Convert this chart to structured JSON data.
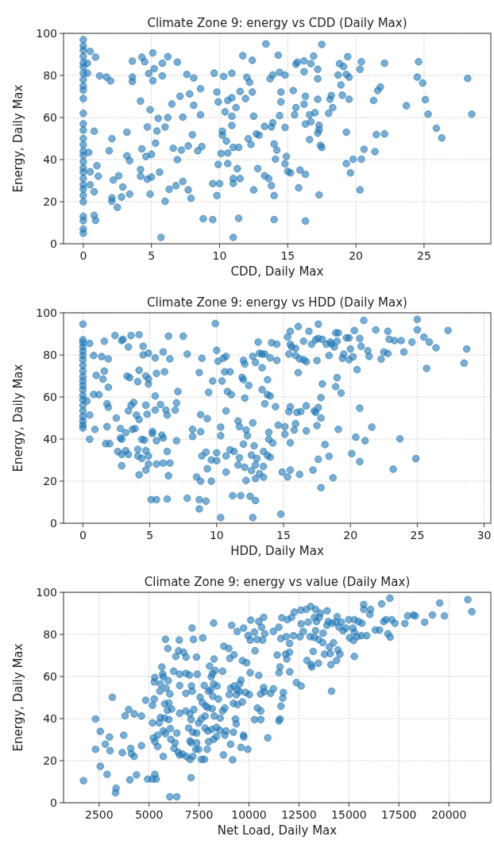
{
  "chart_data": [
    {
      "type": "scatter",
      "title": "Climate Zone 9: energy vs CDD (Daily Max)",
      "xlabel": "CDD, Daily Max",
      "ylabel": "Energy, Daily Max",
      "color": "#1f77b4",
      "marker": "circle",
      "grid": true,
      "xlim": [
        -1.45,
        29.9
      ],
      "ylim": [
        0,
        100
      ],
      "xticks": [
        0,
        5,
        10,
        15,
        20,
        25
      ],
      "yticks": [
        0,
        20,
        40,
        60,
        80,
        100
      ],
      "x": [
        0,
        0,
        0,
        0,
        0,
        0,
        0,
        0,
        0,
        0,
        0,
        0,
        0,
        0,
        0,
        0,
        0,
        0,
        0,
        0,
        0,
        0,
        0,
        0,
        0,
        0,
        0,
        0,
        0,
        0,
        0.5,
        0.9,
        0.3,
        0.3,
        1.2,
        1.7,
        2.0,
        3.6,
        3.6,
        3.6,
        4.3,
        4.5,
        5.1,
        4.8,
        5.2,
        5.1,
        5.8,
        5.8,
        6.2,
        6.9,
        7.6,
        8.1,
        8.6,
        7.8,
        7.1,
        6.5,
        4.2,
        4.9,
        5.5,
        6.2,
        7.3,
        8.1,
        8.6,
        4.7,
        5.4,
        6.0,
        5.3,
        6.6,
        7.2,
        7.7,
        8.0,
        8.7,
        8.4,
        4.3,
        4.6,
        5.0,
        1.9,
        3.2,
        3.4,
        2.1,
        0.8,
        3.2,
        0.4,
        1.0,
        0.5,
        1.1,
        2.2,
        2.6,
        4.2,
        4.2,
        4.7,
        5.6,
        5.0,
        6.9,
        6.3,
        6.8,
        7.3,
        7.7,
        7.9,
        0.5,
        0.8,
        2.1,
        2.1,
        2.5,
        2.9,
        3.4,
        2.8,
        4.9,
        6.0,
        0.8,
        0.9,
        8.8,
        9.5,
        9.8,
        9.5,
        10.0,
        9.9,
        10.1,
        10.6,
        10.6,
        11.0,
        11.4,
        11.3,
        11.5,
        11.0,
        11.0,
        12.5,
        11.4,
        11.0,
        5.7,
        9.6,
        10.3,
        10.9,
        9.8,
        9.9,
        10.6,
        10.9,
        10.4,
        10.9,
        11.2,
        10.9,
        10.2,
        10.2,
        10.5,
        12.1,
        12.3,
        11.7,
        12.4,
        11.5,
        11.9,
        12.4,
        12.0,
        12.2,
        12.5,
        12.7,
        12.9,
        12.8,
        13.3,
        13.6,
        13.8,
        14.0,
        14.0,
        13.4,
        14.3,
        13.7,
        13.9,
        14.4,
        14.8,
        14.5,
        14.5,
        14.4,
        13.9,
        13.8,
        13.3,
        14.0,
        14.2,
        14.8,
        14.1,
        14.9,
        14.8,
        15.0,
        15.2,
        15.8,
        16.3,
        15.9,
        16.3,
        17.3,
        15.4,
        15.6,
        15.5,
        15.6,
        15.7,
        16.2,
        16.7,
        16.9,
        17.5,
        17.2,
        16.2,
        17.2,
        16.3,
        16.2,
        16.6,
        17.0,
        17.2,
        16.3,
        16.7,
        17.3,
        17.3,
        17.2,
        16.6,
        17.4,
        17.5,
        18.0,
        18.3,
        18.1,
        18.2,
        18.7,
        18.9,
        19.0,
        19.5,
        18.8,
        19.1,
        19.4,
        19.3,
        19.5,
        19.3,
        19.3,
        19.8,
        19.6,
        20.3,
        20.4,
        20.6,
        20.3,
        20.4,
        21.4,
        21.5,
        22.1,
        21.3,
        21.6,
        21.8,
        22.1,
        23.7,
        24.6,
        24.5,
        24.9,
        25.1,
        25.3,
        25.9,
        26.3,
        28.2,
        28.5
      ],
      "values": [
        97,
        94,
        92,
        89,
        86,
        84,
        81,
        78,
        75,
        73,
        69,
        62,
        57,
        54,
        50,
        47,
        44,
        42,
        39,
        36,
        34,
        31,
        28,
        26,
        23,
        20,
        13,
        11,
        7,
        5,
        91.4,
        88.7,
        85.8,
        81.1,
        79.8,
        79.2,
        77.4,
        86.8,
        79.2,
        77.1,
        88.7,
        86.5,
        90.7,
        80.9,
        83.2,
        77.5,
        79.8,
        85.8,
        88.9,
        86.3,
        80.5,
        78.8,
        73.7,
        71.2,
        70.1,
        66.4,
        67.8,
        63.7,
        59.6,
        60.0,
        60.2,
        65.8,
        61.3,
        55.5,
        53.6,
        55.5,
        47.8,
        45.4,
        44.5,
        46.5,
        51.8,
        46.2,
        44.2,
        45.1,
        41.5,
        42.5,
        44.2,
        41.8,
        39.5,
        49.9,
        53.5,
        53.0,
        43.4,
        37.1,
        34.2,
        32.1,
        30.3,
        32.3,
        35.3,
        32.1,
        30.7,
        34.0,
        31.7,
        40.0,
        25.9,
        27.6,
        29.6,
        25.6,
        21.6,
        28.0,
        24.7,
        21.8,
        20.2,
        17.3,
        27.0,
        23.6,
        22.2,
        23.6,
        20.2,
        13.5,
        11.1,
        11.9,
        11.5,
        22.9,
        28.6,
        28.6,
        37.7,
        42.9,
        43.1,
        38.1,
        45.8,
        45.8,
        35.7,
        31.0,
        31.0,
        28.7,
        25.6,
        12.1,
        3.0,
        3.0,
        81.1,
        79.5,
        81.1,
        72.1,
        67.4,
        68.1,
        69.4,
        62.7,
        60.6,
        64.7,
        56.2,
        51.6,
        53.5,
        48.8,
        49.9,
        47.2,
        89.4,
        87.2,
        72.4,
        69.0,
        72.1,
        79.1,
        76.8,
        60.6,
        52.2,
        51.6,
        35.7,
        32.3,
        31.0,
        27.6,
        22.9,
        11.5,
        95.0,
        89.6,
        78.4,
        80.2,
        81.5,
        80.2,
        72.1,
        67.4,
        60.9,
        57.5,
        55.5,
        55.8,
        47.4,
        44.5,
        55.3,
        40.2,
        41.5,
        38.0,
        34.4,
        33.7,
        26.6,
        33.0,
        35.0,
        10.8,
        23.2,
        72.8,
        64.7,
        61.3,
        85.3,
        86.3,
        86.9,
        85.6,
        89.2,
        94.7,
        82.9,
        81.8,
        78.4,
        70.1,
        66.3,
        61.3,
        62.3,
        68.7,
        56.9,
        58.0,
        56.3,
        54.2,
        52.6,
        49.5,
        46.8,
        45.8,
        62.0,
        64.7,
        68.7,
        70.5,
        80.2,
        75.5,
        70.6,
        68.7,
        85.6,
        84.2,
        88.9,
        80.5,
        79.2,
        53.0,
        38.1,
        40.2,
        33.7,
        25.6,
        40.2,
        44.9,
        82.9,
        86.5,
        43.8,
        51.9,
        52.2,
        68.1,
        72.8,
        74.5,
        85.8,
        65.6,
        86.5,
        79.2,
        76.4,
        68.5,
        61.6,
        54.9,
        50.3,
        78.6,
        61.6
      ]
    },
    {
      "type": "scatter",
      "title": "Climate Zone 9: energy vs HDD (Daily Max)",
      "xlabel": "HDD, Daily Max",
      "ylabel": "Energy, Daily Max",
      "color": "#1f77b4",
      "marker": "circle",
      "grid": true,
      "xlim": [
        -1.45,
        30.5
      ],
      "ylim": [
        0,
        100
      ],
      "xticks": [
        0,
        5,
        10,
        15,
        20,
        25,
        30
      ],
      "yticks": [
        0,
        20,
        40,
        60,
        80,
        100
      ],
      "x": [
        0,
        0,
        0,
        0,
        0,
        0,
        0,
        0,
        0,
        0,
        0,
        0,
        0,
        0,
        0,
        0,
        0,
        0,
        0,
        0,
        0,
        0.5,
        0.3,
        0.5,
        0.8,
        1.2,
        1.0,
        0.8,
        1.4,
        1.6,
        1.9,
        1.6,
        1.5,
        1.9,
        0.9,
        0.5,
        1.8,
        1.8,
        1.9,
        1.7,
        2.0,
        2.4,
        2.9,
        3.0,
        3.6,
        4.2,
        3.4,
        4.5,
        4.5,
        4.9,
        5.4,
        6.0,
        6.5,
        6.4,
        7.5,
        7.8,
        3.3,
        3.5,
        4.2,
        4.1,
        4.7,
        4.9,
        4.9,
        5.5,
        6.1,
        5.4,
        7.1,
        7.0,
        2.5,
        2.8,
        2.9,
        3.2,
        2.8,
        3.7,
        3.9,
        3.4,
        3.6,
        3.8,
        4.0,
        4.2,
        4.7,
        4.8,
        5.4,
        5.8,
        6.2,
        6.3,
        6.9,
        5.2,
        5.2,
        5.9,
        6.0,
        5.5,
        4.4,
        4.6,
        7.0,
        2.6,
        2.9,
        3.2,
        3.4,
        4.1,
        4.1,
        4.4,
        4.7,
        4.9,
        4.9,
        5.5,
        6.0,
        6.5,
        6.3,
        2.9,
        4.2,
        4.7,
        6.4,
        5.1,
        5.5,
        6.3,
        7.8,
        8.7,
        9.2,
        8.7,
        9.9,
        10.0,
        8.7,
        8.9,
        9.4,
        9.7,
        10.1,
        10.5,
        10.7,
        10.6,
        11.0,
        10.4,
        10.8,
        11.1,
        10.7,
        10.3,
        10.3,
        8.2,
        8.2,
        8.8,
        8.8,
        9.3,
        8.9,
        9.2,
        9.6,
        10.0,
        10.0,
        10.7,
        11.0,
        11.3,
        9.3,
        10.7,
        8.5,
        8.8,
        9.6,
        10.3,
        11.2,
        11.8,
        12.5,
        12.9,
        12.7,
        14.8,
        11.6,
        11.7,
        12.2,
        12.3,
        12.7,
        12.0,
        11.7,
        11.6,
        12.1,
        12.6,
        12.6,
        13.0,
        12.8,
        12.9,
        13.5,
        13.8,
        14.0,
        13.5,
        13.2,
        13.5,
        12.2,
        12.9,
        13.9,
        13.9,
        14.2,
        14.6,
        15.1,
        15.1,
        15.5,
        15.8,
        15.9,
        16.7,
        16.0,
        16.3,
        16.7,
        15.5,
        15.4,
        17.4,
        17.3,
        17.6,
        17.8,
        17.5,
        17.8,
        17.9,
        18.1,
        18.4,
        17.6,
        18.7,
        17.2,
        16.2,
        15.5,
        15.3,
        14.9,
        17.8,
        19.1,
        19.3,
        19.0,
        18.9,
        12.9,
        13.4,
        13.4,
        13.2,
        13.1,
        13.6,
        14.0,
        14.1,
        14.5,
        14.5,
        12.0,
        12.1,
        12.7,
        11.9,
        12.0,
        12.4,
        13.4,
        13.8,
        13.8,
        14.0,
        13.6,
        14.4,
        12.1,
        15.3,
        15.5,
        15.5,
        15.6,
        15.9,
        15.4,
        15.9,
        16.1,
        16.2,
        16.5,
        16.5,
        16.7,
        16.1,
        16.9,
        17.1,
        17.4,
        17.6,
        17.6,
        17.9,
        17.5,
        18.2,
        18.4,
        18.5,
        18.6,
        18.8,
        18.9,
        19.0,
        19.1,
        19.4,
        19.5,
        19.7,
        19.9,
        20.0,
        19.9,
        20.2,
        20.3,
        20.5,
        20.7,
        20.8,
        21.0,
        21.3,
        21.4,
        21.9,
        22.3,
        22.5,
        22.8,
        22.8,
        22.9,
        23.3,
        23.8,
        24.0,
        24.6,
        25.0,
        25.0,
        25.5,
        25.9,
        25.7,
        26.4,
        27.3,
        28.5,
        28.7,
        20.1,
        20.4,
        20.7,
        21.1,
        20.7,
        21.6,
        23.2,
        23.7,
        24.9
      ],
      "values": [
        94.6,
        87.2,
        85.8,
        83.8,
        81.8,
        79.7,
        77.7,
        75.0,
        72.3,
        69.6,
        67.6,
        65.5,
        63.5,
        60.8,
        58.8,
        56.1,
        53.4,
        50.7,
        48.6,
        46.6,
        45.3,
        85.5,
        58.1,
        51.4,
        61.2,
        61.1,
        70.3,
        79.7,
        79.2,
        86.5,
        78.1,
        72.3,
        68.5,
        64.6,
        44.6,
        39.9,
        45.9,
        56.8,
        55.1,
        37.8,
        37.8,
        89.2,
        86.8,
        87.4,
        89.2,
        89.6,
        83.8,
        84.1,
        80.0,
        80.8,
        78.6,
        81.4,
        78.1,
        88.9,
        88.9,
        80.4,
        69.9,
        69.2,
        72.7,
        67.3,
        70.0,
        68.6,
        66.2,
        71.2,
        72.0,
        60.5,
        62.6,
        57.2,
        50.0,
        45.0,
        39.9,
        43.0,
        40.5,
        44.6,
        45.0,
        53.4,
        56.1,
        57.4,
        51.4,
        49.3,
        56.1,
        51.8,
        53.8,
        56.4,
        53.8,
        51.4,
        53.8,
        43.6,
        42.6,
        41.9,
        40.5,
        39.2,
        39.9,
        39.5,
        39.2,
        34.1,
        32.7,
        34.5,
        32.7,
        32.0,
        35.1,
        30.8,
        34.5,
        32.0,
        28.1,
        28.1,
        28.6,
        28.6,
        34.1,
        27.3,
        23.0,
        25.3,
        22.6,
        11.2,
        11.2,
        11.5,
        11.9,
        11.2,
        10.5,
        6.8,
        94.9,
        82.2,
        71.6,
        78.4,
        62.2,
        67.6,
        77.0,
        78.4,
        79.3,
        72.0,
        72.0,
        67.6,
        62.6,
        61.1,
        53.4,
        45.7,
        41.6,
        44.6,
        41.2,
        43.5,
        51.6,
        49.7,
        32.0,
        33.8,
        30.1,
        33.5,
        29.7,
        32.0,
        34.9,
        34.1,
        25.9,
        24.3,
        22.0,
        20.0,
        20.0,
        2.7,
        13.1,
        13.1,
        12.8,
        10.8,
        2.7,
        4.3,
        48.6,
        45.9,
        44.3,
        41.6,
        47.7,
        37.6,
        31.1,
        27.7,
        26.6,
        25.0,
        32.4,
        30.8,
        36.8,
        27.7,
        34.1,
        32.2,
        31.4,
        27.0,
        23.6,
        21.9,
        20.3,
        21.2,
        39.9,
        43.2,
        38.1,
        46.6,
        45.9,
        42.3,
        38.2,
        44.3,
        47.3,
        43.9,
        52.7,
        53.1,
        55.8,
        55.4,
        53.0,
        52.7,
        53.4,
        55.0,
        50.0,
        46.4,
        59.7,
        66.2,
        37.4,
        31.8,
        30.4,
        21.6,
        25.3,
        23.2,
        25.3,
        22.0,
        24.3,
        16.9,
        44.6,
        61.9,
        69.2,
        64.9,
        76.4,
        73.9,
        80.4,
        80.8,
        86.1,
        80.4,
        78.6,
        85.8,
        85.1,
        77.4,
        77.4,
        75.7,
        79.3,
        69.3,
        68.2,
        65.5,
        63.5,
        68.2,
        61.1,
        60.5,
        56.8,
        55.4,
        59.5,
        88.5,
        91.2,
        85.1,
        83.8,
        83.1,
        80.4,
        79.7,
        93.5,
        78.1,
        86.5,
        77.7,
        76.8,
        71.6,
        91.2,
        85.1,
        87.2,
        94.6,
        87.8,
        87.4,
        77.3,
        85.1,
        79.7,
        86.1,
        85.1,
        83.8,
        90.5,
        86.5,
        90.5,
        78.4,
        80.4,
        88.1,
        88.1,
        82.8,
        77.7,
        79.1,
        91.6,
        73.0,
        87.8,
        84.1,
        96.4,
        82.0,
        79.3,
        91.9,
        78.0,
        81.4,
        80.7,
        91.2,
        87.4,
        86.8,
        86.8,
        81.4,
        86.1,
        96.9,
        91.9,
        88.5,
        86.1,
        73.6,
        83.4,
        91.6,
        76.1,
        82.8,
        33.1,
        40.9,
        54.7,
        39.2,
        29.3,
        45.7,
        25.7,
        40.1,
        30.7
      ]
    },
    {
      "type": "scatter",
      "title": "Climate Zone 9: energy vs value (Daily Max)",
      "xlabel": "Net Load, Daily Max",
      "ylabel": "Energy, Daily Max",
      "color": "#1f77b4",
      "marker": "circle",
      "grid": true,
      "xlim": [
        720,
        22100
      ],
      "ylim": [
        0,
        100
      ],
      "xticks": [
        2500,
        5000,
        7500,
        10000,
        12500,
        15000,
        17500,
        20000
      ],
      "yticks": [
        0,
        20,
        40,
        60,
        80,
        100
      ],
      "x": [
        1720,
        2320,
        2320,
        2560,
        2560,
        2810,
        2900,
        3020,
        3050,
        3160,
        3350,
        3320,
        3660,
        3730,
        3800,
        3980,
        4040,
        4080,
        4120,
        4250,
        4260,
        4370,
        4620,
        4620,
        4830,
        4930,
        5170,
        5290,
        5360,
        5260,
        5170,
        5290,
        5260,
        5640,
        5680,
        5710,
        5960,
        5570,
        5850,
        5540,
        6040,
        5780,
        5990,
        5920,
        6130,
        5570,
        5780,
        5990,
        5170,
        5500,
        5710,
        5430,
        5820,
        5220,
        5290,
        5430,
        5710,
        6060,
        6090,
        6300,
        6250,
        6390,
        6460,
        6530,
        6040,
        6390,
        5820,
        5940,
        6340,
        6480,
        6730,
        6850,
        6510,
        6230,
        6530,
        6840,
        7020,
        7410,
        6530,
        6840,
        7120,
        7160,
        7240,
        7050,
        6840,
        6530,
        6980,
        7100,
        7190,
        7050,
        7100,
        7380,
        7480,
        7380,
        7340,
        7480,
        7190,
        7050,
        6870,
        6670,
        7100,
        7150,
        7220,
        7690,
        7370,
        8230,
        7550,
        7670,
        7830,
        7760,
        7970,
        8080,
        8110,
        8170,
        8310,
        8030,
        8250,
        8230,
        8400,
        8190,
        8470,
        8160,
        8260,
        7940,
        7800,
        7620,
        7800,
        7940,
        8140,
        8370,
        8230,
        8370,
        7980,
        7910,
        7770,
        7620,
        8720,
        8540,
        8680,
        8790,
        8560,
        8850,
        8790,
        9080,
        9180,
        9220,
        9360,
        9320,
        9430,
        9220,
        9360,
        9670,
        9530,
        9080,
        9250,
        9010,
        8680,
        8740,
        8990,
        9040,
        9250,
        9670,
        9600,
        9530,
        9410,
        9130,
        9410,
        9730,
        9720,
        9740,
        9600,
        9940,
        9820,
        10020,
        9880,
        10060,
        10300,
        10060,
        9950,
        10090,
        10270,
        10490,
        10730,
        10630,
        10790,
        10680,
        10400,
        10490,
        10580,
        10730,
        10770,
        11080,
        11220,
        10420,
        10590,
        10280,
        10590,
        10940,
        11220,
        11490,
        11590,
        11410,
        11550,
        11500,
        11720,
        11690,
        11600,
        11550,
        11500,
        11640,
        11920,
        12130,
        12270,
        12600,
        12870,
        13090,
        13330,
        13570,
        13910,
        11860,
        12030,
        11830,
        12030,
        11890,
        12040,
        12370,
        12610,
        12220,
        12550,
        12720,
        12610,
        12960,
        13060,
        13270,
        13330,
        13480,
        13690,
        13710,
        13270,
        13380,
        13520,
        13900,
        13970,
        14160,
        14230,
        14020,
        13780,
        14070,
        14450,
        14550,
        14380,
        14100,
        13210,
        12900,
        13110,
        13470,
        13140,
        14130,
        14410,
        14350,
        14620,
        14500,
        14710,
        14850,
        14990,
        15270,
        15200,
        15270,
        15030,
        15230,
        15410,
        15620,
        15480,
        15650,
        15740,
        15740,
        16050,
        16080,
        15270,
        15890,
        16320,
        16530,
        16640,
        16740,
        16850,
        16950,
        17060,
        17050,
        17140,
        17300,
        17800,
        17940,
        18220,
        18320,
        18790,
        19180,
        19540,
        19780,
        20950,
        21150
      ],
      "values": [
        10.5,
        39.8,
        25.4,
        33.9,
        17.3,
        27.8,
        13.5,
        31.2,
        24.7,
        50.1,
        6.9,
        4.7,
        23.8,
        32.1,
        41.3,
        44.3,
        10.9,
        25.8,
        23.3,
        22.0,
        42.2,
        13.2,
        41.2,
        27.1,
        48.7,
        11.2,
        11.2,
        13.5,
        11.2,
        49.3,
        46.3,
        59.5,
        57.4,
        64.5,
        61.1,
        59.8,
        58.0,
        56.4,
        54.4,
        53.0,
        51.7,
        47.0,
        47.4,
        43.9,
        44.5,
        40.5,
        40.2,
        39.5,
        37.9,
        37.9,
        34.1,
        32.1,
        32.8,
        30.8,
        29.0,
        26.7,
        22.0,
        35.2,
        30.1,
        28.5,
        25.8,
        33.1,
        24.0,
        22.7,
        2.8,
        2.8,
        77.7,
        73.3,
        69.5,
        72.2,
        71.5,
        69.2,
        77.3,
        62.5,
        61.1,
        61.5,
        60.7,
        61.1,
        55.7,
        52.0,
        55.5,
        53.0,
        44.3,
        42.2,
        43.6,
        42.5,
        35.5,
        39.5,
        33.5,
        29.4,
        28.5,
        33.1,
        37.9,
        28.5,
        25.4,
        25.4,
        22.0,
        20.6,
        22.0,
        23.1,
        11.9,
        83.0,
        77.6,
        78.3,
        69.2,
        85.4,
        50.1,
        47.6,
        46.0,
        55.7,
        53.0,
        53.7,
        59.8,
        61.4,
        62.8,
        64.9,
        68.3,
        56.4,
        55.5,
        50.6,
        49.3,
        44.7,
        41.2,
        45.2,
        41.2,
        39.8,
        35.5,
        34.1,
        34.8,
        35.8,
        30.1,
        31.4,
        29.0,
        25.4,
        20.6,
        20.6,
        22.7,
        34.4,
        43.6,
        45.0,
        40.2,
        34.1,
        32.1,
        27.8,
        20.4,
        33.5,
        37.5,
        39.8,
        46.6,
        47.2,
        51.3,
        47.9,
        52.8,
        54.4,
        55.5,
        51.4,
        62.5,
        74.4,
        73.3,
        68.6,
        70.3,
        67.5,
        58.2,
        56.4,
        53.7,
        84.3,
        81.4,
        83.0,
        32.1,
        31.2,
        26.3,
        25.4,
        52.4,
        51.4,
        66.5,
        61.8,
        72.2,
        77.3,
        79.4,
        86.8,
        81.1,
        86.1,
        88.1,
        83.4,
        80.3,
        77.3,
        77.6,
        60.5,
        51.7,
        54.7,
        52.8,
        52.0,
        54.1,
        45.0,
        43.6,
        39.5,
        39.5,
        30.8,
        81.4,
        83.4,
        78.0,
        70.2,
        64.5,
        61.8,
        52.4,
        49.7,
        45.9,
        39.8,
        38.9,
        87.9,
        87.0,
        88.1,
        90.6,
        91.5,
        91.9,
        93.3,
        91.9,
        90.1,
        91.2,
        78.9,
        75.7,
        70.6,
        71.5,
        68.3,
        62.2,
        57.1,
        55.5,
        79.4,
        78.9,
        81.4,
        85.0,
        85.8,
        78.9,
        78.6,
        81.8,
        77.6,
        76.1,
        80.6,
        88.1,
        86.1,
        88.1,
        84.3,
        86.1,
        85.3,
        76.0,
        74.0,
        70.6,
        70.9,
        72.6,
        70.6,
        67.6,
        65.6,
        71.9,
        67.6,
        65.6,
        66.3,
        64.5,
        53.0,
        88.4,
        85.8,
        85.8,
        83.4,
        81.7,
        83.0,
        87.0,
        87.0,
        83.0,
        81.0,
        78.4,
        77.1,
        78.9,
        79.4,
        86.1,
        85.3,
        94.2,
        91.9,
        89.5,
        91.9,
        69.5,
        79.4,
        82.1,
        82.1,
        94.5,
        86.1,
        87.0,
        80.3,
        78.7,
        97.2,
        87.0,
        85.3,
        85.2,
        88.8,
        89.2,
        88.8,
        85.8,
        89.2,
        94.9,
        88.8,
        96.5,
        90.8
      ]
    }
  ]
}
